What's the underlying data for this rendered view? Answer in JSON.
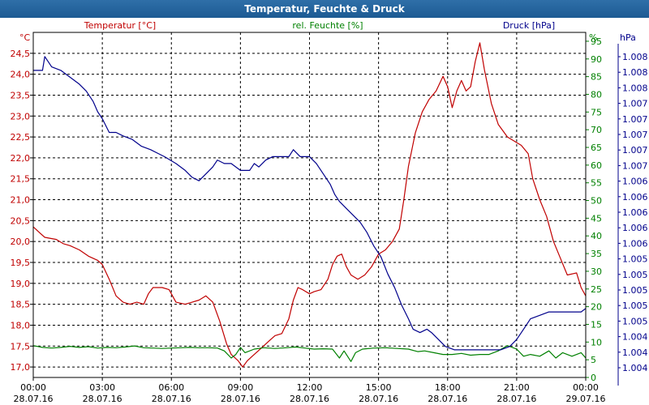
{
  "window": {
    "title": "Temperatur, Feuchte & Druck"
  },
  "colors": {
    "temperature": "#c00000",
    "humidity": "#008000",
    "pressure": "#00008b",
    "grid": "#000000",
    "text": "#000000"
  },
  "chart_data": {
    "type": "line",
    "title": "Temperatur, Feuchte & Druck",
    "grid": true,
    "xlim_hours": [
      0,
      24
    ],
    "x_ticks": [
      {
        "h": 0,
        "time": "00:00",
        "date": "28.07.16"
      },
      {
        "h": 3,
        "time": "03:00",
        "date": "28.07.16"
      },
      {
        "h": 6,
        "time": "06:00",
        "date": "28.07.16"
      },
      {
        "h": 9,
        "time": "09:00",
        "date": "28.07.16"
      },
      {
        "h": 12,
        "time": "12:00",
        "date": "28.07.16"
      },
      {
        "h": 15,
        "time": "15:00",
        "date": "28.07.16"
      },
      {
        "h": 18,
        "time": "18:00",
        "date": "28.07.16"
      },
      {
        "h": 21,
        "time": "21:00",
        "date": "28.07.16"
      },
      {
        "h": 24,
        "time": "00:00",
        "date": "29.07.16"
      }
    ],
    "axes": {
      "temperature": {
        "unit": "°C",
        "label": "Temperatur [°C]",
        "ylim": [
          16.75,
          25.0
        ],
        "ticks": [
          "17,0",
          "17,5",
          "18,0",
          "18,5",
          "19,0",
          "19,5",
          "20,0",
          "20,5",
          "21,0",
          "21,5",
          "22,0",
          "22,5",
          "23,0",
          "23,5",
          "24,0",
          "24,5"
        ],
        "tick_values": [
          17.0,
          17.5,
          18.0,
          18.5,
          19.0,
          19.5,
          20.0,
          20.5,
          21.0,
          21.5,
          22.0,
          22.5,
          23.0,
          23.5,
          24.0,
          24.5
        ]
      },
      "humidity": {
        "unit": "%",
        "label": "rel. Feuchte [%]",
        "ylim": [
          0,
          97.5
        ],
        "ticks": [
          "0",
          "5",
          "10",
          "15",
          "20",
          "25",
          "30",
          "35",
          "40",
          "45",
          "50",
          "55",
          "60",
          "65",
          "70",
          "75",
          "80",
          "85",
          "90",
          "95"
        ],
        "tick_values": [
          0,
          5,
          10,
          15,
          20,
          25,
          30,
          35,
          40,
          45,
          50,
          55,
          60,
          65,
          70,
          75,
          80,
          85,
          90,
          95
        ]
      },
      "pressure": {
        "unit": "hPa",
        "label": "Druck [hPa]",
        "ticks": [
          "1.008",
          "1.008",
          "1.008",
          "1.007",
          "1.007",
          "1.007",
          "1.007",
          "1.007",
          "1.006",
          "1.006",
          "1.006",
          "1.006",
          "1.006",
          "1.005",
          "1.005",
          "1.005",
          "1.005",
          "1.005",
          "1.004",
          "1.004",
          "1.004"
        ]
      }
    },
    "series": [
      {
        "name": "Temperatur",
        "axis": "temperature",
        "points": [
          [
            0.0,
            20.35
          ],
          [
            0.3,
            20.2
          ],
          [
            0.5,
            20.1
          ],
          [
            1.0,
            20.05
          ],
          [
            1.3,
            19.95
          ],
          [
            1.6,
            19.9
          ],
          [
            2.0,
            19.8
          ],
          [
            2.4,
            19.65
          ],
          [
            2.8,
            19.55
          ],
          [
            3.0,
            19.45
          ],
          [
            3.3,
            19.1
          ],
          [
            3.6,
            18.7
          ],
          [
            3.9,
            18.55
          ],
          [
            4.2,
            18.5
          ],
          [
            4.5,
            18.55
          ],
          [
            4.8,
            18.5
          ],
          [
            5.0,
            18.75
          ],
          [
            5.2,
            18.9
          ],
          [
            5.6,
            18.9
          ],
          [
            5.9,
            18.85
          ],
          [
            6.2,
            18.55
          ],
          [
            6.6,
            18.5
          ],
          [
            6.9,
            18.55
          ],
          [
            7.2,
            18.6
          ],
          [
            7.5,
            18.7
          ],
          [
            7.8,
            18.55
          ],
          [
            8.1,
            18.1
          ],
          [
            8.4,
            17.55
          ],
          [
            8.6,
            17.3
          ],
          [
            8.9,
            17.15
          ],
          [
            9.1,
            17.0
          ],
          [
            9.3,
            17.15
          ],
          [
            9.6,
            17.3
          ],
          [
            9.9,
            17.45
          ],
          [
            10.2,
            17.6
          ],
          [
            10.5,
            17.75
          ],
          [
            10.8,
            17.8
          ],
          [
            11.1,
            18.15
          ],
          [
            11.3,
            18.6
          ],
          [
            11.5,
            18.9
          ],
          [
            11.7,
            18.85
          ],
          [
            12.0,
            18.75
          ],
          [
            12.2,
            18.8
          ],
          [
            12.5,
            18.85
          ],
          [
            12.8,
            19.1
          ],
          [
            13.0,
            19.45
          ],
          [
            13.2,
            19.65
          ],
          [
            13.4,
            19.7
          ],
          [
            13.6,
            19.4
          ],
          [
            13.8,
            19.2
          ],
          [
            14.1,
            19.1
          ],
          [
            14.4,
            19.2
          ],
          [
            14.7,
            19.4
          ],
          [
            15.0,
            19.7
          ],
          [
            15.3,
            19.8
          ],
          [
            15.6,
            20.0
          ],
          [
            15.9,
            20.3
          ],
          [
            16.1,
            21.0
          ],
          [
            16.3,
            21.8
          ],
          [
            16.6,
            22.6
          ],
          [
            16.9,
            23.1
          ],
          [
            17.2,
            23.4
          ],
          [
            17.5,
            23.6
          ],
          [
            17.8,
            23.95
          ],
          [
            18.0,
            23.7
          ],
          [
            18.2,
            23.2
          ],
          [
            18.4,
            23.6
          ],
          [
            18.6,
            23.85
          ],
          [
            18.8,
            23.6
          ],
          [
            19.0,
            23.7
          ],
          [
            19.2,
            24.3
          ],
          [
            19.4,
            24.75
          ],
          [
            19.6,
            24.1
          ],
          [
            19.9,
            23.3
          ],
          [
            20.2,
            22.8
          ],
          [
            20.6,
            22.5
          ],
          [
            20.9,
            22.4
          ],
          [
            21.2,
            22.3
          ],
          [
            21.5,
            22.1
          ],
          [
            21.7,
            21.5
          ],
          [
            22.0,
            21.0
          ],
          [
            22.3,
            20.6
          ],
          [
            22.6,
            20.0
          ],
          [
            22.9,
            19.6
          ],
          [
            23.2,
            19.2
          ],
          [
            23.6,
            19.25
          ],
          [
            23.8,
            18.9
          ],
          [
            24.0,
            18.7
          ]
        ]
      },
      {
        "name": "rel. Feuchte",
        "axis": "humidity",
        "points": [
          [
            0.0,
            9
          ],
          [
            0.4,
            8.5
          ],
          [
            0.8,
            8.3
          ],
          [
            1.2,
            8.5
          ],
          [
            1.6,
            8.8
          ],
          [
            2.0,
            8.5
          ],
          [
            2.4,
            8.7
          ],
          [
            2.8,
            8.3
          ],
          [
            3.2,
            8.5
          ],
          [
            3.6,
            8.4
          ],
          [
            4.0,
            8.6
          ],
          [
            4.4,
            8.9
          ],
          [
            4.8,
            8.4
          ],
          [
            5.2,
            8.3
          ],
          [
            5.6,
            8.2
          ],
          [
            6.0,
            8.3
          ],
          [
            6.4,
            8.4
          ],
          [
            6.8,
            8.5
          ],
          [
            7.2,
            8.4
          ],
          [
            7.6,
            8.4
          ],
          [
            8.0,
            8.3
          ],
          [
            8.3,
            7.5
          ],
          [
            8.6,
            5.5
          ],
          [
            8.8,
            6.5
          ],
          [
            9.0,
            8.5
          ],
          [
            9.2,
            7.0
          ],
          [
            9.6,
            8.0
          ],
          [
            10.0,
            8.4
          ],
          [
            10.5,
            8.2
          ],
          [
            11.0,
            8.4
          ],
          [
            11.4,
            8.6
          ],
          [
            11.8,
            8.3
          ],
          [
            12.2,
            8.0
          ],
          [
            12.6,
            8.1
          ],
          [
            13.0,
            8.0
          ],
          [
            13.3,
            5.5
          ],
          [
            13.5,
            7.5
          ],
          [
            13.8,
            4.5
          ],
          [
            14.0,
            7.0
          ],
          [
            14.3,
            8.0
          ],
          [
            14.8,
            8.3
          ],
          [
            15.3,
            8.4
          ],
          [
            15.8,
            8.2
          ],
          [
            16.3,
            8.0
          ],
          [
            16.7,
            7.3
          ],
          [
            17.0,
            7.5
          ],
          [
            17.4,
            7.0
          ],
          [
            17.8,
            6.5
          ],
          [
            18.2,
            6.5
          ],
          [
            18.6,
            6.8
          ],
          [
            19.0,
            6.3
          ],
          [
            19.4,
            6.5
          ],
          [
            19.8,
            6.5
          ],
          [
            20.2,
            7.5
          ],
          [
            20.6,
            9.0
          ],
          [
            21.0,
            8.0
          ],
          [
            21.3,
            6.0
          ],
          [
            21.6,
            6.5
          ],
          [
            22.0,
            6.0
          ],
          [
            22.4,
            7.5
          ],
          [
            22.7,
            5.5
          ],
          [
            23.0,
            7.0
          ],
          [
            23.4,
            6.0
          ],
          [
            23.8,
            7.0
          ],
          [
            24.0,
            5.5
          ]
        ]
      },
      {
        "name": "Druck",
        "axis": "pressure",
        "ylim": [
          0,
          100
        ],
        "points": [
          [
            0.0,
            89
          ],
          [
            0.4,
            89
          ],
          [
            0.5,
            93
          ],
          [
            0.8,
            90
          ],
          [
            1.2,
            89
          ],
          [
            1.6,
            87
          ],
          [
            2.0,
            85
          ],
          [
            2.3,
            83
          ],
          [
            2.6,
            80
          ],
          [
            2.8,
            77
          ],
          [
            3.0,
            75
          ],
          [
            3.3,
            71
          ],
          [
            3.6,
            71
          ],
          [
            3.9,
            70
          ],
          [
            4.3,
            69
          ],
          [
            4.7,
            67
          ],
          [
            5.1,
            66
          ],
          [
            5.4,
            65
          ],
          [
            5.7,
            64
          ],
          [
            6.2,
            62
          ],
          [
            6.6,
            60
          ],
          [
            6.9,
            58
          ],
          [
            7.2,
            57
          ],
          [
            7.5,
            59
          ],
          [
            7.8,
            61
          ],
          [
            8.0,
            63
          ],
          [
            8.3,
            62
          ],
          [
            8.6,
            62
          ],
          [
            9.0,
            60
          ],
          [
            9.4,
            60
          ],
          [
            9.6,
            62
          ],
          [
            9.8,
            61
          ],
          [
            10.1,
            63
          ],
          [
            10.4,
            64
          ],
          [
            10.8,
            64
          ],
          [
            11.1,
            64
          ],
          [
            11.3,
            66
          ],
          [
            11.6,
            64
          ],
          [
            12.0,
            64
          ],
          [
            12.3,
            62
          ],
          [
            12.6,
            59
          ],
          [
            12.9,
            56
          ],
          [
            13.1,
            53
          ],
          [
            13.3,
            51
          ],
          [
            13.6,
            49
          ],
          [
            13.9,
            47
          ],
          [
            14.2,
            45
          ],
          [
            14.5,
            42
          ],
          [
            14.8,
            38
          ],
          [
            15.1,
            35
          ],
          [
            15.4,
            30
          ],
          [
            15.7,
            26
          ],
          [
            16.0,
            21
          ],
          [
            16.3,
            17
          ],
          [
            16.5,
            14
          ],
          [
            16.8,
            13
          ],
          [
            17.1,
            14
          ],
          [
            17.3,
            13
          ],
          [
            17.6,
            11
          ],
          [
            17.9,
            9
          ],
          [
            18.3,
            8
          ],
          [
            18.7,
            8
          ],
          [
            19.1,
            8
          ],
          [
            19.5,
            8
          ],
          [
            19.9,
            8
          ],
          [
            20.3,
            8
          ],
          [
            20.7,
            9
          ],
          [
            21.0,
            11
          ],
          [
            21.3,
            14
          ],
          [
            21.6,
            17
          ],
          [
            22.0,
            18
          ],
          [
            22.4,
            19
          ],
          [
            23.0,
            19
          ],
          [
            23.5,
            19
          ],
          [
            23.8,
            19
          ],
          [
            24.0,
            20
          ]
        ]
      }
    ]
  }
}
